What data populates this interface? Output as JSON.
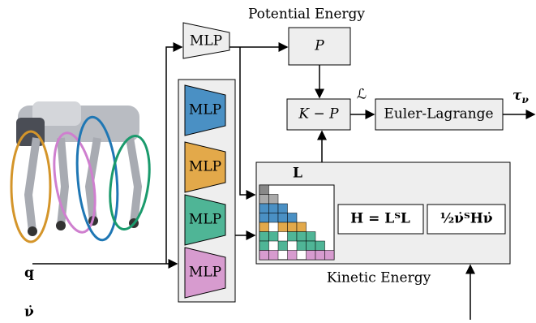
{
  "potential_energy": {
    "label": "Potential Energy",
    "mlp": "MLP",
    "p_box": "P"
  },
  "combine": {
    "k_minus_p": "K − P",
    "lagrangian": "ℒ"
  },
  "euler_lagrange": {
    "label": "Euler-Lagrange",
    "output": {
      "symbol": "τ",
      "subscript": "ν"
    }
  },
  "mlp_stack": [
    "MLP",
    "MLP",
    "MLP",
    "MLP"
  ],
  "kinetic_energy": {
    "label": "Kinetic Energy",
    "matrix": "L",
    "h_formula": "H = LᵀL",
    "energy_formula": "½ν̇ᵀHν̇"
  },
  "inputs": {
    "q": "q",
    "nu_dot": "ν̇"
  }
}
